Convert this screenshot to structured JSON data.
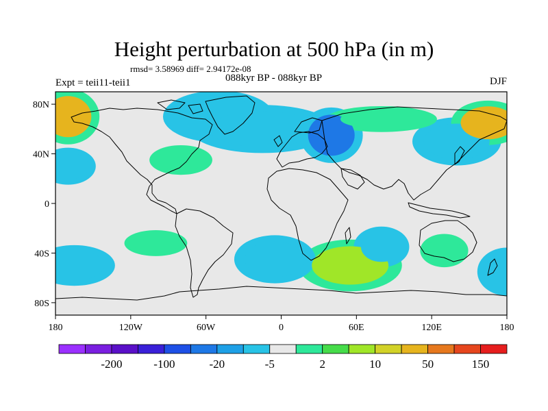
{
  "title": "Height perturbation at 500 hPa (in m)",
  "stats_line": "rmsd= 3.58969 diff= 2.94172e-08",
  "left_label": "Expt = teii11-teii1",
  "center_label": "088kyr BP - 088kyr BP",
  "right_label": "DJF",
  "map": {
    "lon_range": [
      -180,
      180
    ],
    "lat_range": [
      -90,
      90
    ],
    "background_color": "#e8e8e8",
    "lat_ticks": [
      {
        "value": 80,
        "label": "80N"
      },
      {
        "value": 40,
        "label": "40N"
      },
      {
        "value": 0,
        "label": "0"
      },
      {
        "value": -40,
        "label": "40S"
      },
      {
        "value": -80,
        "label": "80S"
      }
    ],
    "lon_ticks": [
      {
        "value": -180,
        "label": "180"
      },
      {
        "value": -120,
        "label": "120W"
      },
      {
        "value": -60,
        "label": "60W"
      },
      {
        "value": 0,
        "label": "0"
      },
      {
        "value": 60,
        "label": "60E"
      },
      {
        "value": 120,
        "label": "120E"
      },
      {
        "value": 180,
        "label": "180"
      }
    ]
  },
  "colorbar": {
    "colors": [
      "#9b30ff",
      "#7a1fe0",
      "#5a10c8",
      "#3a20d8",
      "#1e50e6",
      "#1e78e6",
      "#1ea0e6",
      "#28c3e6",
      "#e8e8e8",
      "#2ee89a",
      "#46dc4a",
      "#a0e628",
      "#d2d228",
      "#e6b41e",
      "#e6781e",
      "#e6461e",
      "#e61e1e"
    ],
    "labels": [
      {
        "after_index": 1,
        "text": "-200"
      },
      {
        "after_index": 3,
        "text": "-100"
      },
      {
        "after_index": 5,
        "text": "-20"
      },
      {
        "after_index": 7,
        "text": "-5"
      },
      {
        "after_index": 9,
        "text": "2"
      },
      {
        "after_index": 11,
        "text": "10"
      },
      {
        "after_index": 13,
        "text": "50"
      },
      {
        "after_index": 15,
        "text": "150"
      }
    ]
  },
  "fields": [
    {
      "name": "neg-greenland",
      "lon": -50,
      "lat": 70,
      "level": -5
    },
    {
      "name": "neg-canada-europe",
      "lon": -15,
      "lat": 60,
      "level": -5
    },
    {
      "name": "neg-west-siberia",
      "lon": 40,
      "lat": 55,
      "level": -20
    },
    {
      "name": "neg-west-pacific-south",
      "lon": -170,
      "lat": 30,
      "level": -5
    },
    {
      "name": "neg-east-asia",
      "lon": 140,
      "lat": 50,
      "level": -5
    },
    {
      "name": "pos-alaska",
      "lon": -170,
      "lat": 70,
      "level": 50
    },
    {
      "name": "pos-kamchatka",
      "lon": 165,
      "lat": 65,
      "level": 50
    },
    {
      "name": "pos-central-us",
      "lon": -80,
      "lat": 35,
      "level": 2
    },
    {
      "name": "pos-north-russia",
      "lon": 80,
      "lat": 68,
      "level": 2
    },
    {
      "name": "pos-south-indian",
      "lon": 55,
      "lat": -50,
      "level": 10
    },
    {
      "name": "neg-south-atlantic",
      "lon": -5,
      "lat": -45,
      "level": -5
    },
    {
      "name": "neg-south-pacific",
      "lon": -165,
      "lat": -50,
      "level": -5
    },
    {
      "name": "neg-southwest-indian",
      "lon": 80,
      "lat": -35,
      "level": -5
    },
    {
      "name": "pos-south-pacific",
      "lon": -100,
      "lat": -32,
      "level": 2
    },
    {
      "name": "pos-australia-south",
      "lon": 130,
      "lat": -38,
      "level": 2
    },
    {
      "name": "neg-southeast-pacific",
      "lon": 180,
      "lat": -55,
      "level": -5
    }
  ]
}
